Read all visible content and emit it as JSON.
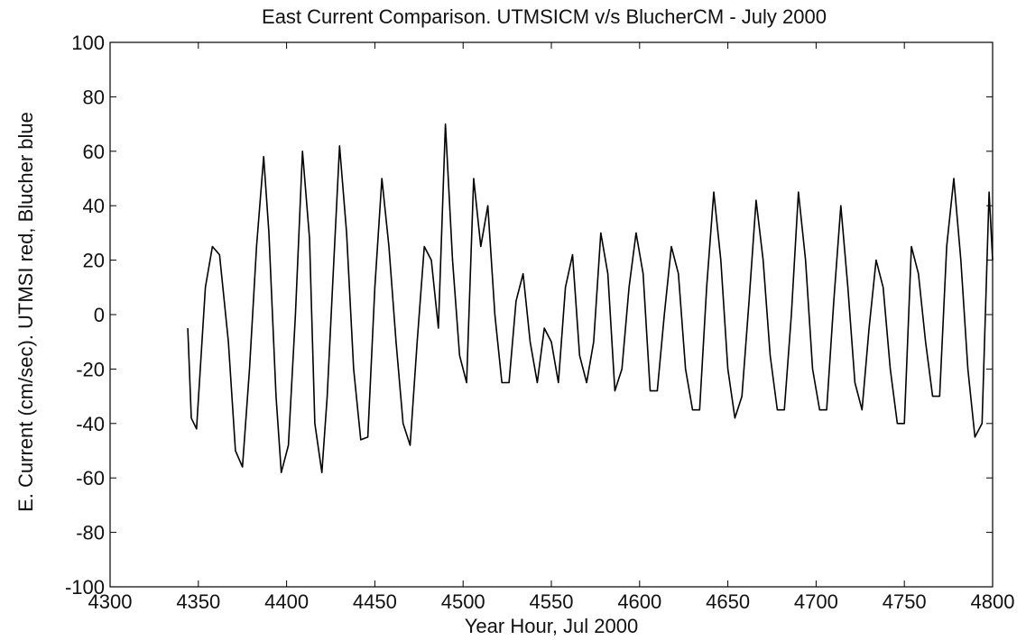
{
  "chart_data": {
    "type": "line",
    "title": "East Current Comparison.  UTMSICM v/s BlucherCM - July 2000",
    "xlabel": "Year Hour, Jul 2000",
    "ylabel": "E. Current (cm/sec).  UTMSI red, Blucher blue",
    "xlim": [
      4300,
      4800
    ],
    "ylim": [
      -100,
      100
    ],
    "xticks": [
      "4300",
      "4350",
      "4400",
      "4450",
      "4500",
      "4550",
      "4600",
      "4650",
      "4700",
      "4750",
      "4800"
    ],
    "yticks": [
      "100",
      "80",
      "60",
      "40",
      "20",
      "0",
      "-20",
      "-40",
      "-60",
      "-80",
      "-100"
    ],
    "grid": false,
    "series": [
      {
        "color": "#000000",
        "x": [
          4344,
          4346,
          4349,
          4354,
          4358,
          4362,
          4367,
          4371,
          4375,
          4379,
          4383,
          4387,
          4390,
          4394,
          4397,
          4401,
          4405,
          4409,
          4413,
          4416,
          4420,
          4423,
          4426,
          4430,
          4434,
          4438,
          4442,
          4446,
          4450,
          4454,
          4458,
          4462,
          4466,
          4470,
          4474,
          4478,
          4482,
          4486,
          4490,
          4494,
          4498,
          4502,
          4506,
          4510,
          4514,
          4518,
          4522,
          4526,
          4530,
          4534,
          4538,
          4542,
          4546,
          4550,
          4554,
          4558,
          4562,
          4566,
          4570,
          4574,
          4578,
          4582,
          4586,
          4590,
          4594,
          4598,
          4602,
          4606,
          4610,
          4614,
          4618,
          4622,
          4626,
          4630,
          4634,
          4638,
          4642,
          4646,
          4650,
          4654,
          4658,
          4662,
          4666,
          4670,
          4674,
          4678,
          4682,
          4686,
          4690,
          4694,
          4698,
          4702,
          4706,
          4710,
          4714,
          4718,
          4722,
          4726,
          4730,
          4734,
          4738,
          4742,
          4746,
          4750,
          4754,
          4758,
          4762,
          4766,
          4770,
          4774,
          4778,
          4782,
          4786,
          4790,
          4794,
          4798,
          4800
        ],
        "y": [
          -5,
          -38,
          -42,
          10,
          25,
          22,
          -10,
          -50,
          -56,
          -20,
          25,
          58,
          30,
          -30,
          -58,
          -48,
          0,
          60,
          28,
          -40,
          -58,
          -30,
          10,
          62,
          30,
          -20,
          -46,
          -45,
          10,
          50,
          25,
          -10,
          -40,
          -48,
          -10,
          25,
          20,
          -5,
          70,
          20,
          -15,
          -25,
          50,
          25,
          40,
          0,
          -25,
          -25,
          5,
          15,
          -10,
          -25,
          -5,
          -10,
          -25,
          10,
          22,
          -15,
          -25,
          -10,
          30,
          15,
          -28,
          -20,
          10,
          30,
          15,
          -28,
          -28,
          0,
          25,
          15,
          -20,
          -35,
          -35,
          10,
          45,
          20,
          -20,
          -38,
          -30,
          5,
          42,
          20,
          -15,
          -35,
          -35,
          0,
          45,
          20,
          -20,
          -35,
          -35,
          5,
          40,
          10,
          -25,
          -35,
          -5,
          20,
          10,
          -20,
          -40,
          -40,
          25,
          15,
          -10,
          -30,
          -30,
          25,
          50,
          20,
          -20,
          -45,
          -40,
          45,
          20
        ]
      }
    ]
  }
}
